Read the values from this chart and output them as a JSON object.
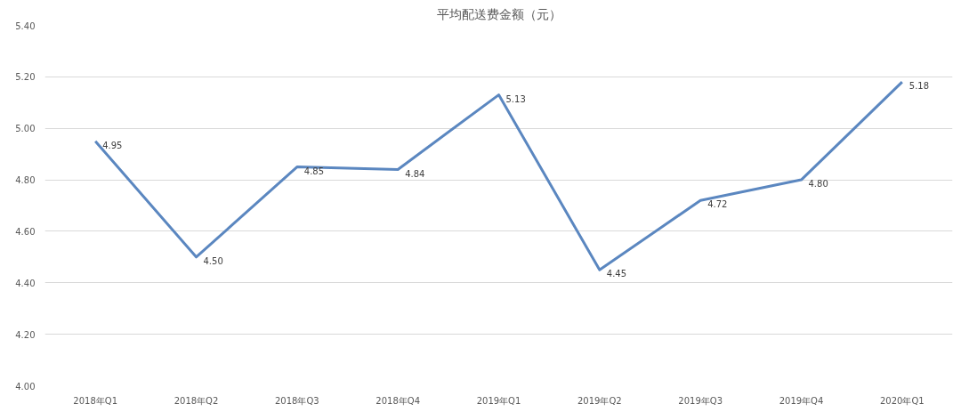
{
  "chart_data": {
    "type": "line",
    "title": "平均配送费金额（元）",
    "categories": [
      "2018年Q1",
      "2018年Q2",
      "2018年Q3",
      "2018年Q4",
      "2019年Q1",
      "2019年Q2",
      "2019年Q3",
      "2019年Q4",
      "2020年Q1"
    ],
    "series": [
      {
        "color": "#5b87c0",
        "values": [
          4.95,
          4.5,
          4.85,
          4.84,
          5.13,
          4.45,
          4.72,
          4.8,
          5.18
        ],
        "value_labels": [
          "4.95",
          "4.50",
          "4.85",
          "4.84",
          "5.13",
          "4.45",
          "4.72",
          "4.80",
          "5.18"
        ]
      }
    ],
    "ylim": [
      4.0,
      5.4
    ],
    "yticks": [
      {
        "value": 4.0,
        "label": "4.00"
      },
      {
        "value": 4.2,
        "label": "4.20"
      },
      {
        "value": 4.4,
        "label": "4.40"
      },
      {
        "value": 4.6,
        "label": "4.60"
      },
      {
        "value": 4.8,
        "label": "4.80"
      },
      {
        "value": 5.0,
        "label": "5.00"
      },
      {
        "value": 5.2,
        "label": "5.20"
      },
      {
        "value": 5.4,
        "label": "5.40"
      }
    ],
    "grid": "y",
    "marker": "none",
    "line_style": "solid"
  }
}
